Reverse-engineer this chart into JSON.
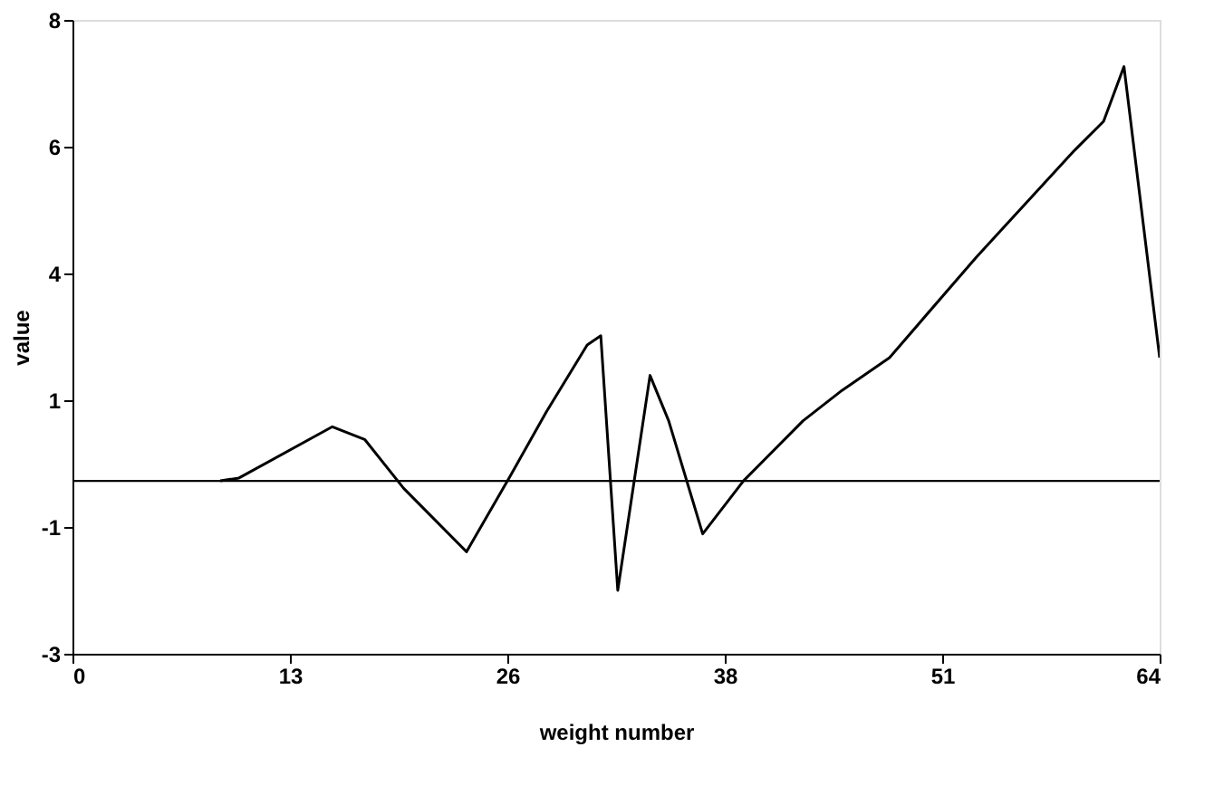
{
  "chart_data": {
    "type": "line",
    "xlabel": "weight number",
    "ylabel": "value",
    "x": [
      8.7,
      9.8,
      15.3,
      17.2,
      19.5,
      23.2,
      25.8,
      27.9,
      30.3,
      31.1,
      32.1,
      34.0,
      35.1,
      37.1,
      39.5,
      43.0,
      45.3,
      48.1,
      53.2,
      59.0,
      60.7,
      61.9,
      64
    ],
    "series": [
      {
        "color": "#000000",
        "values": [
          0,
          0.05,
          0.94,
          0.72,
          -0.13,
          -1.23,
          0.1,
          1.2,
          2.36,
          2.52,
          -1.9,
          1.83,
          1.04,
          -0.92,
          0.0,
          1.04,
          1.57,
          2.14,
          3.88,
          5.74,
          6.24,
          7.19,
          2.14
        ]
      }
    ],
    "xlim": [
      0,
      64
    ],
    "ylim": [
      -3,
      8
    ],
    "xticks": [
      {
        "value": 0,
        "label": "0"
      },
      {
        "value": 12.8,
        "label": "13"
      },
      {
        "value": 25.6,
        "label": "26"
      },
      {
        "value": 38.4,
        "label": "38"
      },
      {
        "value": 51.2,
        "label": "51"
      },
      {
        "value": 64,
        "label": "64"
      }
    ],
    "yticks": [
      {
        "value": -3,
        "label": "-3"
      },
      {
        "value": -0.8,
        "label": "-1"
      },
      {
        "value": 1.4,
        "label": "1"
      },
      {
        "value": 3.6,
        "label": "4"
      },
      {
        "value": 5.8,
        "label": "6"
      },
      {
        "value": 8,
        "label": "8"
      }
    ],
    "ref_lines": [
      {
        "axis": "y",
        "value": 0,
        "color": "#000000"
      }
    ],
    "grid": false,
    "marker": "none",
    "line_style": "solid"
  }
}
